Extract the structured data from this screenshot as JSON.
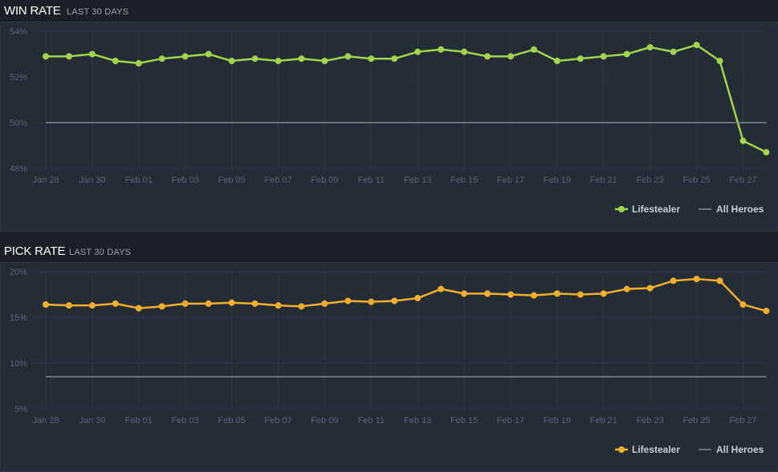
{
  "sections": [
    {
      "title": "WIN RATE",
      "subtitle": "LAST 30 DAYS"
    },
    {
      "title": "PICK RATE",
      "subtitle": "LAST 30 DAYS"
    }
  ],
  "chart_data": [
    {
      "type": "line",
      "title": "WIN RATE",
      "subtitle": "LAST 30 DAYS",
      "x": [
        "Jan 28",
        "Jan 29",
        "Jan 30",
        "Jan 31",
        "Feb 01",
        "Feb 02",
        "Feb 03",
        "Feb 04",
        "Feb 05",
        "Feb 06",
        "Feb 07",
        "Feb 08",
        "Feb 09",
        "Feb 10",
        "Feb 11",
        "Feb 12",
        "Feb 13",
        "Feb 14",
        "Feb 15",
        "Feb 16",
        "Feb 17",
        "Feb 18",
        "Feb 19",
        "Feb 20",
        "Feb 21",
        "Feb 22",
        "Feb 23",
        "Feb 24",
        "Feb 25",
        "Feb 26",
        "Feb 27",
        "Feb 28"
      ],
      "x_tick_labels": [
        "Jan 28",
        "Jan 30",
        "Feb 01",
        "Feb 03",
        "Feb 05",
        "Feb 07",
        "Feb 09",
        "Feb 11",
        "Feb 13",
        "Feb 15",
        "Feb 17",
        "Feb 19",
        "Feb 21",
        "Feb 23",
        "Feb 25",
        "Feb 27"
      ],
      "y_ticks": [
        48,
        50,
        52,
        54
      ],
      "y_tick_labels": [
        "48%",
        "50%",
        "52%",
        "54%"
      ],
      "ylim": [
        48,
        54
      ],
      "series": [
        {
          "name": "Lifestealer",
          "color": "#a4d34e",
          "values": [
            52.9,
            52.9,
            53.0,
            52.7,
            52.6,
            52.8,
            52.9,
            53.0,
            52.7,
            52.8,
            52.7,
            52.8,
            52.7,
            52.9,
            52.8,
            52.8,
            53.1,
            53.2,
            53.1,
            52.9,
            52.9,
            53.2,
            52.7,
            52.8,
            52.9,
            53.0,
            53.3,
            53.1,
            53.4,
            52.7,
            49.2,
            48.7
          ]
        },
        {
          "name": "All Heroes",
          "color": "#808a93",
          "values": [
            50,
            50,
            50,
            50,
            50,
            50,
            50,
            50,
            50,
            50,
            50,
            50,
            50,
            50,
            50,
            50,
            50,
            50,
            50,
            50,
            50,
            50,
            50,
            50,
            50,
            50,
            50,
            50,
            50,
            50,
            50,
            50
          ]
        }
      ],
      "legend_position": "bottom-right",
      "grid": true
    },
    {
      "type": "line",
      "title": "PICK RATE",
      "subtitle": "LAST 30 DAYS",
      "x": [
        "Jan 28",
        "Jan 29",
        "Jan 30",
        "Jan 31",
        "Feb 01",
        "Feb 02",
        "Feb 03",
        "Feb 04",
        "Feb 05",
        "Feb 06",
        "Feb 07",
        "Feb 08",
        "Feb 09",
        "Feb 10",
        "Feb 11",
        "Feb 12",
        "Feb 13",
        "Feb 14",
        "Feb 15",
        "Feb 16",
        "Feb 17",
        "Feb 18",
        "Feb 19",
        "Feb 20",
        "Feb 21",
        "Feb 22",
        "Feb 23",
        "Feb 24",
        "Feb 25",
        "Feb 26",
        "Feb 27",
        "Feb 28"
      ],
      "x_tick_labels": [
        "Jan 28",
        "Jan 30",
        "Feb 01",
        "Feb 03",
        "Feb 05",
        "Feb 07",
        "Feb 09",
        "Feb 11",
        "Feb 13",
        "Feb 15",
        "Feb 17",
        "Feb 19",
        "Feb 21",
        "Feb 23",
        "Feb 25",
        "Feb 27"
      ],
      "y_ticks": [
        5,
        10,
        15,
        20
      ],
      "y_tick_labels": [
        "5%",
        "10%",
        "15%",
        "20%"
      ],
      "ylim": [
        5,
        20
      ],
      "series": [
        {
          "name": "Lifestealer",
          "color": "#f5ae2c",
          "values": [
            16.4,
            16.3,
            16.3,
            16.5,
            16.0,
            16.2,
            16.5,
            16.5,
            16.6,
            16.5,
            16.3,
            16.2,
            16.5,
            16.8,
            16.7,
            16.8,
            17.1,
            18.1,
            17.6,
            17.6,
            17.5,
            17.4,
            17.6,
            17.5,
            17.6,
            18.1,
            18.2,
            19.0,
            19.2,
            19.0,
            16.4,
            15.7
          ]
        },
        {
          "name": "All Heroes",
          "color": "#808a93",
          "values": [
            8.5,
            8.5,
            8.5,
            8.5,
            8.5,
            8.5,
            8.5,
            8.5,
            8.5,
            8.5,
            8.5,
            8.5,
            8.5,
            8.5,
            8.5,
            8.5,
            8.5,
            8.5,
            8.5,
            8.5,
            8.5,
            8.5,
            8.5,
            8.5,
            8.5,
            8.5,
            8.5,
            8.5,
            8.5,
            8.5,
            8.5,
            8.5
          ]
        }
      ],
      "legend_position": "bottom-right",
      "grid": true
    }
  ]
}
